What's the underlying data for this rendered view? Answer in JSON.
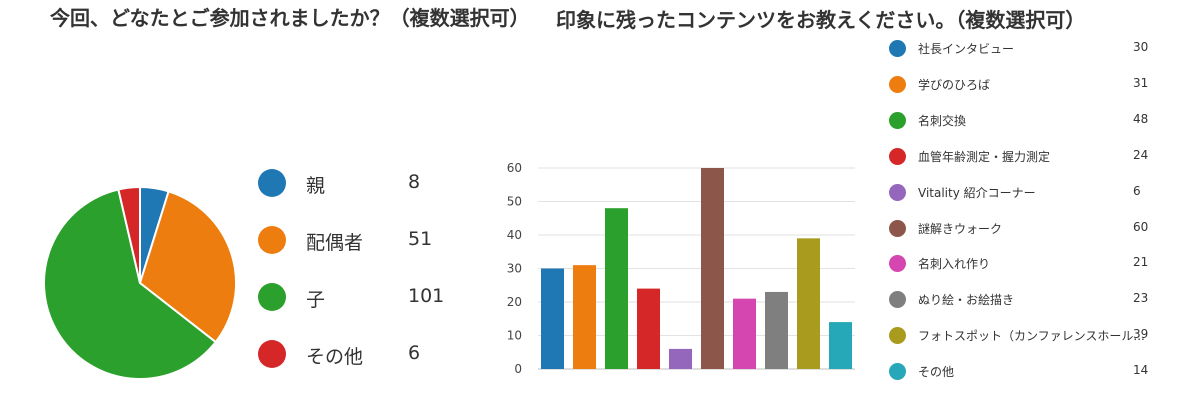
{
  "titles": {
    "left": "今回、どなたとご参加されましたか？（複数選択可）",
    "right": "印象に残ったコンテンツをお教えください。（複数選択可）"
  },
  "chart_data": [
    {
      "type": "pie",
      "title": "今回、どなたとご参加されましたか？（複数選択可）",
      "categories": [
        "親",
        "配偶者",
        "子",
        "その他"
      ],
      "values": [
        8,
        51,
        101,
        6
      ],
      "colors": [
        "#1f77b4",
        "#ed7d0e",
        "#2ca02c",
        "#d62728"
      ],
      "legend": "right"
    },
    {
      "type": "bar",
      "title": "印象に残ったコンテンツをお教えください。（複数選択可）",
      "categories": [
        "社長インタビュー",
        "学びのひろば",
        "名刺交換",
        "血管年齢測定・握力測定",
        "Vitality 紹介コーナー",
        "謎解きウォーク",
        "名刺入れ作り",
        "ぬり絵・お絵描き",
        "フォトスポット（カンファレンスホール...",
        "その他"
      ],
      "values": [
        30,
        31,
        48,
        24,
        6,
        60,
        21,
        23,
        39,
        14
      ],
      "colors": [
        "#1f77b4",
        "#ed7d0e",
        "#2ca02c",
        "#d62728",
        "#9467bd",
        "#8c564b",
        "#d646b0",
        "#7f7f7f",
        "#a89b1e",
        "#27a8b8"
      ],
      "ylim": [
        0,
        60
      ],
      "yticks": [
        0,
        10,
        20,
        30,
        40,
        50,
        60
      ],
      "grid": true,
      "legend": "right"
    }
  ]
}
